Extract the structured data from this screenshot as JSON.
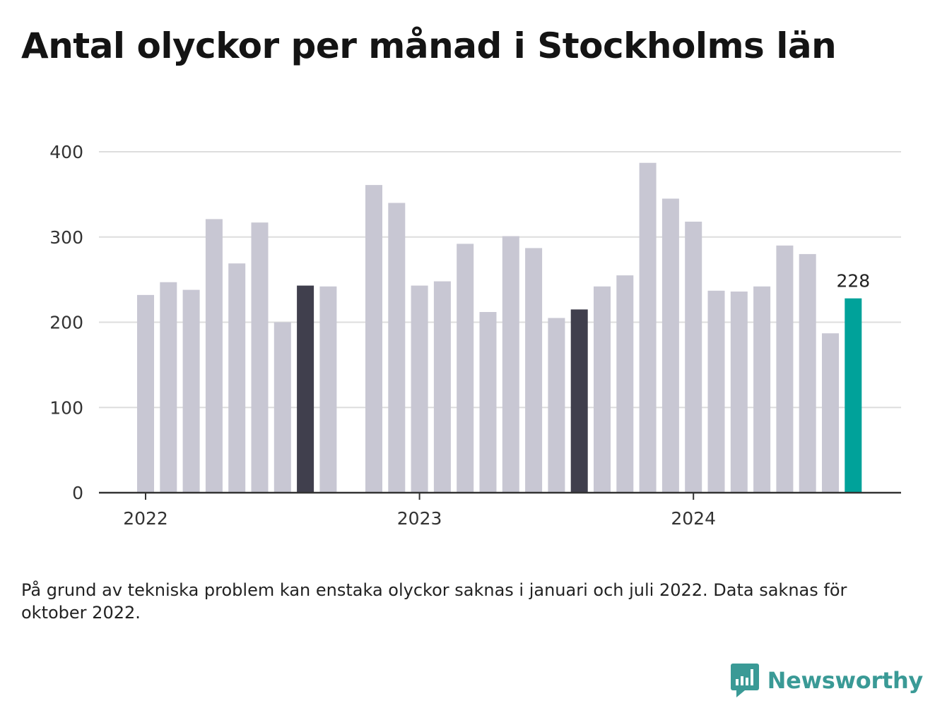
{
  "title": "Antal olyckor per månad i Stockholms län",
  "note": "På grund av tekniska problem kan enstaka olyckor saknas i januari och juli 2022. Data saknas för oktober 2022.",
  "brand": {
    "name": "Newsworthy",
    "icon": "newsworthy-logo-icon"
  },
  "colors": {
    "bar": "#c8c7d3",
    "highlight": "#403f4d",
    "latest": "#00a29a",
    "grid": "#dddddd",
    "axis": "#333333"
  },
  "chart_data": {
    "type": "bar",
    "title": "Antal olyckor per månad i Stockholms län",
    "ylim": [
      0,
      400
    ],
    "yticks": [
      0,
      100,
      200,
      300,
      400
    ],
    "xticks": [
      {
        "label": "2022",
        "month": "2022-01"
      },
      {
        "label": "2023",
        "month": "2023-01"
      },
      {
        "label": "2024",
        "month": "2024-01"
      }
    ],
    "grid": true,
    "categories": [
      "2022-01",
      "2022-02",
      "2022-03",
      "2022-04",
      "2022-05",
      "2022-06",
      "2022-07",
      "2022-08",
      "2022-09",
      "2022-10",
      "2022-11",
      "2022-12",
      "2023-01",
      "2023-02",
      "2023-03",
      "2023-04",
      "2023-05",
      "2023-06",
      "2023-07",
      "2023-08",
      "2023-09",
      "2023-10",
      "2023-11",
      "2023-12",
      "2024-01",
      "2024-02",
      "2024-03",
      "2024-04",
      "2024-05",
      "2024-06",
      "2024-07",
      "2024-08"
    ],
    "values": [
      232,
      247,
      238,
      321,
      269,
      317,
      200,
      243,
      242,
      null,
      361,
      340,
      243,
      248,
      292,
      212,
      301,
      287,
      205,
      215,
      242,
      255,
      387,
      345,
      318,
      237,
      236,
      242,
      290,
      280,
      187,
      228
    ],
    "highlighted": [
      "2022-08",
      "2023-08"
    ],
    "latest": "2024-08",
    "latest_label": "228"
  }
}
